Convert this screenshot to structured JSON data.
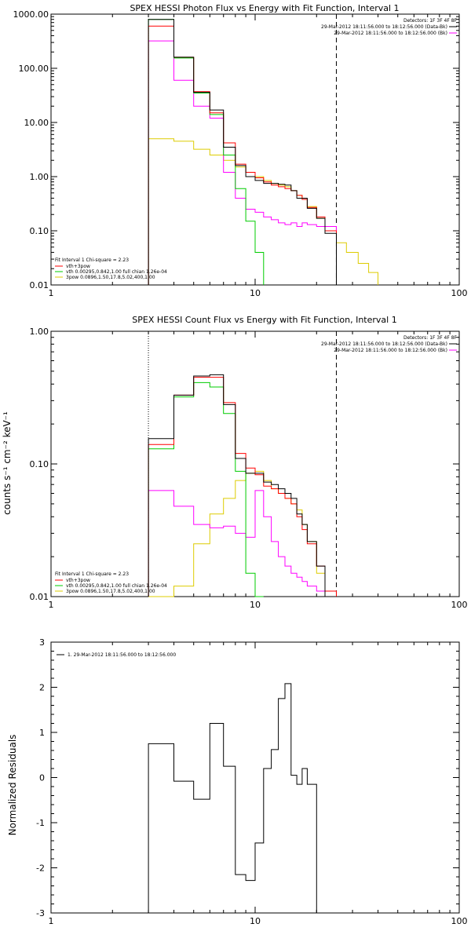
{
  "chart_data": [
    {
      "type": "line",
      "title": "SPEX HESSI Photon Flux vs Energy with Fit Function, Interval 1",
      "xscale": "log",
      "yscale": "log",
      "xlim": [
        1,
        100
      ],
      "ylim": [
        0.01,
        1000
      ],
      "x_ticks": [
        "1",
        "10",
        "100"
      ],
      "y_ticks": [
        "1000.00",
        "100.00",
        "10.00",
        "1.00",
        "0.10",
        "0.01"
      ],
      "legend_top_right": [
        "Detectors: 1F 3F 4F 8F",
        "29-Mar-2012 18:11:56.000 to 18:12:56.000 (Data-Bk)",
        "29-Mar-2012 18:11:56.000 to 18:12:56.000 (Bk)"
      ],
      "legend_bottom_left": [
        "Fit Interval 1   Chi-square = 2.23",
        "vth+3pow",
        "vth 0.00295,0.842,1.00   full chian 1.26e-04",
        "3pow 0.0896,1.50,17.8,5.02,400,1.00"
      ],
      "fit_range_lines": [
        3,
        25
      ],
      "edges": [
        3,
        4,
        5,
        6,
        7,
        8,
        9,
        10,
        11,
        12,
        13,
        14,
        15,
        16,
        17,
        18,
        20,
        22,
        25
      ],
      "series": [
        {
          "name": "Data-Bk",
          "color": "#000000",
          "values": [
            800,
            160,
            36,
            17,
            3.5,
            1.6,
            1.0,
            0.85,
            0.75,
            0.75,
            0.72,
            0.7,
            0.55,
            0.4,
            0.4,
            0.26,
            0.17,
            0.09
          ]
        },
        {
          "name": "vth+3pow",
          "color": "#ff0000",
          "values": [
            600,
            160,
            37,
            15,
            4.2,
            1.7,
            1.2,
            0.95,
            0.8,
            0.7,
            0.65,
            0.6,
            0.55,
            0.45,
            0.38,
            0.27,
            0.18,
            0.1
          ]
        },
        {
          "name": "vth",
          "color": "#00cc00",
          "values": [
            800,
            155,
            35,
            14,
            2.5,
            0.6,
            0.15,
            0.04
          ]
        },
        {
          "name": "Bk",
          "color": "#ff00ff",
          "values": [
            320,
            60,
            20,
            12,
            1.2,
            0.4,
            0.25,
            0.22,
            0.18,
            0.16,
            0.14,
            0.13,
            0.14,
            0.12,
            0.14,
            0.13,
            0.12,
            0.12
          ]
        },
        {
          "name": "3pow",
          "color": "#ddcc00",
          "edges": [
            3,
            4,
            5,
            6,
            7,
            8,
            9,
            10,
            11,
            12,
            13,
            14,
            15,
            16,
            17,
            18,
            20,
            22,
            25,
            28,
            32,
            36,
            40
          ],
          "values": [
            5,
            4.5,
            3.2,
            2.5,
            2.0,
            1.5,
            1.2,
            1.0,
            0.85,
            0.75,
            0.7,
            0.65,
            0.55,
            0.45,
            0.38,
            0.28,
            0.17,
            0.1,
            0.06,
            0.04,
            0.025,
            0.017
          ]
        }
      ]
    },
    {
      "type": "line",
      "title": "SPEX HESSI Count Flux vs Energy with Fit Function, Interval 1",
      "ylabel": "counts s⁻¹ cm⁻² keV⁻¹",
      "xscale": "log",
      "yscale": "log",
      "xlim": [
        1,
        100
      ],
      "ylim": [
        0.01,
        1
      ],
      "x_ticks": [
        "1",
        "10",
        "100"
      ],
      "y_ticks": [
        "1.00",
        "0.10",
        "0.01"
      ],
      "legend_top_right": [
        "Detectors: 1F 3F 4F 8F",
        "29-Mar-2012 18:11:56.000 to 18:12:56.000 (Data-Bk)",
        "29-Mar-2012 18:11:56.000 to 18:12:56.000 (Bk)"
      ],
      "legend_bottom_left": [
        "Fit Interval 1   Chi-square = 2.23",
        "vth+3pow",
        "vth 0.00295,0.842,1.00   full chian 1.26e-04",
        "3pow 0.0896,1.50,17.8,5.02,400,1.00"
      ],
      "fit_range_lines": [
        3,
        25
      ],
      "edges": [
        3,
        4,
        5,
        6,
        7,
        8,
        9,
        10,
        11,
        12,
        13,
        14,
        15,
        16,
        17,
        18,
        20,
        22,
        25
      ],
      "series": [
        {
          "name": "Data-Bk",
          "color": "#000000",
          "values": [
            0.155,
            0.33,
            0.46,
            0.47,
            0.28,
            0.11,
            0.085,
            0.085,
            0.073,
            0.07,
            0.065,
            0.06,
            0.055,
            0.042,
            0.035,
            0.026,
            0.017,
            0.01
          ]
        },
        {
          "name": "vth+3pow",
          "color": "#ff0000",
          "values": [
            0.14,
            0.33,
            0.45,
            0.45,
            0.29,
            0.12,
            0.093,
            0.083,
            0.068,
            0.065,
            0.06,
            0.055,
            0.05,
            0.04,
            0.032,
            0.025,
            0.017,
            0.011
          ]
        },
        {
          "name": "vth",
          "color": "#00cc00",
          "values": [
            0.13,
            0.32,
            0.41,
            0.38,
            0.24,
            0.088,
            0.015,
            0.008
          ]
        },
        {
          "name": "Bk",
          "color": "#ff00ff",
          "values": [
            0.063,
            0.048,
            0.035,
            0.033,
            0.034,
            0.03,
            0.028,
            0.063,
            0.04,
            0.026,
            0.02,
            0.017,
            0.015,
            0.014,
            0.013,
            0.012,
            0.011,
            0.011
          ]
        },
        {
          "name": "3pow",
          "color": "#ddcc00",
          "values": [
            0.008,
            0.012,
            0.025,
            0.042,
            0.055,
            0.075,
            0.085,
            0.088,
            0.075,
            0.065,
            0.06,
            0.055,
            0.05,
            0.045,
            0.035,
            0.026,
            0.015,
            0.008
          ]
        }
      ]
    },
    {
      "type": "line",
      "ylabel": "Normalized Residuals",
      "xscale": "log",
      "yscale": "linear",
      "xlim": [
        1,
        100
      ],
      "ylim": [
        -3,
        3
      ],
      "x_ticks": [
        "1",
        "10",
        "100"
      ],
      "y_ticks": [
        "3",
        "2",
        "1",
        "0",
        "-1",
        "-2",
        "-3"
      ],
      "legend": "1. 29-Mar-2012 18:11:56.000 to 18:12:56.000",
      "edges": [
        3,
        4,
        5,
        6,
        7,
        8,
        9,
        10,
        11,
        12,
        13,
        14,
        15,
        16,
        17,
        18,
        20,
        22,
        25
      ],
      "values": [
        0.75,
        -0.08,
        -0.48,
        1.2,
        0.25,
        -2.15,
        -2.28,
        -1.45,
        0.2,
        0.62,
        1.75,
        2.08,
        0.05,
        -0.15,
        0.2,
        -0.15,
        -3.0,
        -3.0
      ]
    }
  ]
}
